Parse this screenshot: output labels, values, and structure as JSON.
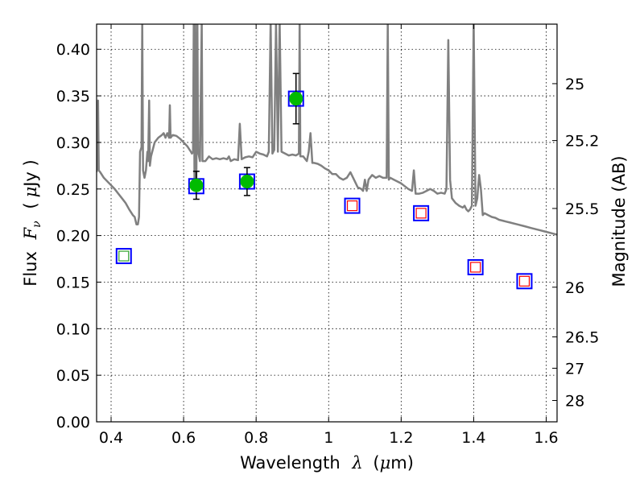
{
  "chart_data": {
    "type": "scatter",
    "xlabel": {
      "prefix": "Wavelength",
      "symbol": "λ",
      "unit_open": "(",
      "unit_mu": "μ",
      "unit_rest": "m)"
    },
    "ylabel": {
      "prefix": "Flux",
      "symbol": "F",
      "subscript": "ν",
      "unit_open": "(",
      "unit_mu": "μ",
      "unit_rest": "Jy )"
    },
    "y2label": "Magnitude (AB)",
    "xlim": [
      0.36,
      1.63
    ],
    "ylim": [
      0.0,
      0.427
    ],
    "grid": true,
    "x_ticks": [
      {
        "value": 0.4,
        "label": "0.4"
      },
      {
        "value": 0.6,
        "label": "0.6"
      },
      {
        "value": 0.8,
        "label": "0.8"
      },
      {
        "value": 1.0,
        "label": "1"
      },
      {
        "value": 1.2,
        "label": "1.2"
      },
      {
        "value": 1.4,
        "label": "1.4"
      },
      {
        "value": 1.6,
        "label": "1.6"
      }
    ],
    "y_ticks": [
      {
        "value": 0.0,
        "label": "0.00"
      },
      {
        "value": 0.05,
        "label": "0.05"
      },
      {
        "value": 0.1,
        "label": "0.10"
      },
      {
        "value": 0.15,
        "label": "0.15"
      },
      {
        "value": 0.2,
        "label": "0.20"
      },
      {
        "value": 0.25,
        "label": "0.25"
      },
      {
        "value": 0.3,
        "label": "0.30"
      },
      {
        "value": 0.35,
        "label": "0.35"
      },
      {
        "value": 0.4,
        "label": "0.40"
      }
    ],
    "y2_ticks": [
      {
        "mag": 25,
        "label": "25"
      },
      {
        "mag": 25.2,
        "label": "25.2"
      },
      {
        "mag": 25.5,
        "label": "25.5"
      },
      {
        "mag": 26,
        "label": "26"
      },
      {
        "mag": 26.5,
        "label": "26.5"
      },
      {
        "mag": 27,
        "label": "27"
      },
      {
        "mag": 28,
        "label": "28"
      }
    ],
    "observed": [
      {
        "x": 0.635,
        "y": 0.254,
        "err": 0.015
      },
      {
        "x": 0.775,
        "y": 0.258,
        "err": 0.015
      },
      {
        "x": 0.91,
        "y": 0.347,
        "err": 0.027
      }
    ],
    "model_boxes": [
      {
        "x": 0.435,
        "y": 0.178
      },
      {
        "x": 0.635,
        "y": 0.253
      },
      {
        "x": 0.775,
        "y": 0.258
      },
      {
        "x": 0.91,
        "y": 0.347
      },
      {
        "x": 1.065,
        "y": 0.232
      },
      {
        "x": 1.255,
        "y": 0.224
      },
      {
        "x": 1.405,
        "y": 0.166
      },
      {
        "x": 1.54,
        "y": 0.151
      }
    ],
    "inner_boxes": [
      {
        "x": 0.435,
        "y": 0.178,
        "color": "#2ca02c"
      },
      {
        "x": 1.065,
        "y": 0.232,
        "color": "#ff0000"
      },
      {
        "x": 1.255,
        "y": 0.224,
        "color": "#ff0000"
      },
      {
        "x": 1.405,
        "y": 0.166,
        "color": "#ff0000"
      },
      {
        "x": 1.54,
        "y": 0.151,
        "color": "#ff0000"
      }
    ],
    "spectrum": [
      [
        0.36,
        0.268
      ],
      [
        0.362,
        0.28
      ],
      [
        0.364,
        0.345
      ],
      [
        0.366,
        0.27
      ],
      [
        0.37,
        0.268
      ],
      [
        0.38,
        0.262
      ],
      [
        0.39,
        0.258
      ],
      [
        0.4,
        0.254
      ],
      [
        0.41,
        0.25
      ],
      [
        0.42,
        0.245
      ],
      [
        0.43,
        0.24
      ],
      [
        0.44,
        0.235
      ],
      [
        0.45,
        0.228
      ],
      [
        0.46,
        0.222
      ],
      [
        0.465,
        0.22
      ],
      [
        0.47,
        0.212
      ],
      [
        0.474,
        0.212
      ],
      [
        0.477,
        0.22
      ],
      [
        0.48,
        0.29
      ],
      [
        0.484,
        0.295
      ],
      [
        0.486,
        0.43
      ],
      [
        0.488,
        0.27
      ],
      [
        0.492,
        0.262
      ],
      [
        0.496,
        0.27
      ],
      [
        0.5,
        0.29
      ],
      [
        0.502,
        0.28
      ],
      [
        0.505,
        0.345
      ],
      [
        0.507,
        0.275
      ],
      [
        0.51,
        0.285
      ],
      [
        0.52,
        0.3
      ],
      [
        0.53,
        0.305
      ],
      [
        0.54,
        0.308
      ],
      [
        0.545,
        0.31
      ],
      [
        0.55,
        0.305
      ],
      [
        0.555,
        0.31
      ],
      [
        0.56,
        0.305
      ],
      [
        0.562,
        0.34
      ],
      [
        0.564,
        0.305
      ],
      [
        0.57,
        0.308
      ],
      [
        0.58,
        0.307
      ],
      [
        0.59,
        0.304
      ],
      [
        0.6,
        0.3
      ],
      [
        0.61,
        0.296
      ],
      [
        0.62,
        0.29
      ],
      [
        0.623,
        0.288
      ],
      [
        0.626,
        0.29
      ],
      [
        0.628,
        0.43
      ],
      [
        0.63,
        0.26
      ],
      [
        0.632,
        0.43
      ],
      [
        0.635,
        0.26
      ],
      [
        0.638,
        0.43
      ],
      [
        0.64,
        0.29
      ],
      [
        0.645,
        0.28
      ],
      [
        0.65,
        0.43
      ],
      [
        0.652,
        0.28
      ],
      [
        0.66,
        0.28
      ],
      [
        0.67,
        0.285
      ],
      [
        0.68,
        0.282
      ],
      [
        0.69,
        0.283
      ],
      [
        0.7,
        0.282
      ],
      [
        0.71,
        0.283
      ],
      [
        0.72,
        0.282
      ],
      [
        0.725,
        0.285
      ],
      [
        0.73,
        0.28
      ],
      [
        0.74,
        0.282
      ],
      [
        0.75,
        0.281
      ],
      [
        0.755,
        0.32
      ],
      [
        0.76,
        0.282
      ],
      [
        0.77,
        0.284
      ],
      [
        0.78,
        0.285
      ],
      [
        0.79,
        0.284
      ],
      [
        0.8,
        0.29
      ],
      [
        0.81,
        0.288
      ],
      [
        0.82,
        0.287
      ],
      [
        0.83,
        0.285
      ],
      [
        0.835,
        0.29
      ],
      [
        0.84,
        0.43
      ],
      [
        0.845,
        0.288
      ],
      [
        0.85,
        0.292
      ],
      [
        0.855,
        0.43
      ],
      [
        0.86,
        0.29
      ],
      [
        0.865,
        0.43
      ],
      [
        0.87,
        0.29
      ],
      [
        0.88,
        0.288
      ],
      [
        0.89,
        0.286
      ],
      [
        0.9,
        0.287
      ],
      [
        0.91,
        0.286
      ],
      [
        0.918,
        0.288
      ],
      [
        0.92,
        0.43
      ],
      [
        0.922,
        0.285
      ],
      [
        0.93,
        0.285
      ],
      [
        0.94,
        0.28
      ],
      [
        0.945,
        0.29
      ],
      [
        0.95,
        0.31
      ],
      [
        0.955,
        0.278
      ],
      [
        0.96,
        0.278
      ],
      [
        0.97,
        0.277
      ],
      [
        0.98,
        0.275
      ],
      [
        0.99,
        0.272
      ],
      [
        1.0,
        0.27
      ],
      [
        1.01,
        0.266
      ],
      [
        1.02,
        0.266
      ],
      [
        1.03,
        0.262
      ],
      [
        1.04,
        0.26
      ],
      [
        1.05,
        0.262
      ],
      [
        1.06,
        0.268
      ],
      [
        1.07,
        0.26
      ],
      [
        1.08,
        0.252
      ],
      [
        1.09,
        0.25
      ],
      [
        1.095,
        0.248
      ],
      [
        1.1,
        0.26
      ],
      [
        1.105,
        0.248
      ],
      [
        1.11,
        0.26
      ],
      [
        1.12,
        0.265
      ],
      [
        1.13,
        0.262
      ],
      [
        1.14,
        0.264
      ],
      [
        1.15,
        0.262
      ],
      [
        1.16,
        0.262
      ],
      [
        1.163,
        0.43
      ],
      [
        1.166,
        0.26
      ],
      [
        1.17,
        0.262
      ],
      [
        1.18,
        0.26
      ],
      [
        1.19,
        0.258
      ],
      [
        1.2,
        0.256
      ],
      [
        1.21,
        0.253
      ],
      [
        1.22,
        0.25
      ],
      [
        1.23,
        0.248
      ],
      [
        1.235,
        0.27
      ],
      [
        1.24,
        0.245
      ],
      [
        1.25,
        0.245
      ],
      [
        1.26,
        0.246
      ],
      [
        1.27,
        0.248
      ],
      [
        1.28,
        0.25
      ],
      [
        1.29,
        0.248
      ],
      [
        1.3,
        0.245
      ],
      [
        1.31,
        0.246
      ],
      [
        1.32,
        0.245
      ],
      [
        1.325,
        0.25
      ],
      [
        1.33,
        0.41
      ],
      [
        1.335,
        0.26
      ],
      [
        1.34,
        0.24
      ],
      [
        1.35,
        0.235
      ],
      [
        1.36,
        0.232
      ],
      [
        1.37,
        0.23
      ],
      [
        1.375,
        0.232
      ],
      [
        1.38,
        0.228
      ],
      [
        1.385,
        0.226
      ],
      [
        1.39,
        0.228
      ],
      [
        1.395,
        0.232
      ],
      [
        1.4,
        0.43
      ],
      [
        1.405,
        0.232
      ],
      [
        1.41,
        0.24
      ],
      [
        1.415,
        0.265
      ],
      [
        1.42,
        0.25
      ],
      [
        1.425,
        0.222
      ],
      [
        1.43,
        0.224
      ],
      [
        1.44,
        0.222
      ],
      [
        1.45,
        0.22
      ],
      [
        1.46,
        0.219
      ],
      [
        1.47,
        0.217
      ],
      [
        1.48,
        0.216
      ],
      [
        1.49,
        0.215
      ],
      [
        1.5,
        0.214
      ],
      [
        1.52,
        0.212
      ],
      [
        1.54,
        0.21
      ],
      [
        1.56,
        0.208
      ],
      [
        1.58,
        0.206
      ],
      [
        1.6,
        0.204
      ],
      [
        1.62,
        0.202
      ],
      [
        1.63,
        0.201
      ]
    ],
    "colors": {
      "spectrum": "#808080",
      "observed": "#00bb00",
      "box": "#0000ff",
      "grid": "#000000"
    }
  }
}
